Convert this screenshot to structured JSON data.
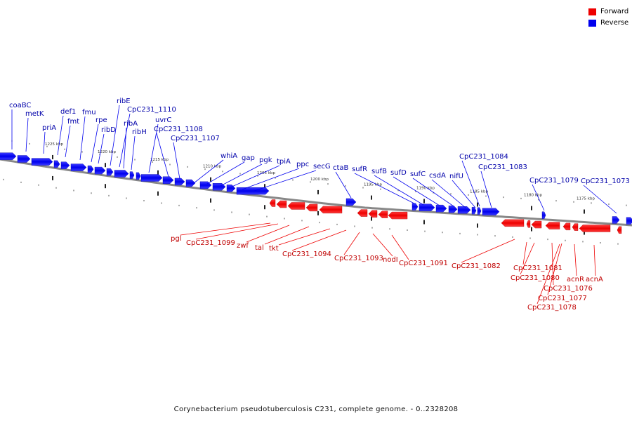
{
  "legend": {
    "items": [
      {
        "label": "Forward",
        "color": "#ee0000"
      },
      {
        "label": "Reverse",
        "color": "#0000ee"
      }
    ]
  },
  "caption": "Corynebacterium pseudotuberculosis C231, complete genome. - 0..2328208",
  "colors": {
    "forward": "#ee0000",
    "forward_label": "#c00000",
    "reverse": "#0000ee",
    "reverse_label": "#0000aa",
    "axis": "#888888"
  },
  "scale_labels": [
    "1225 kbp",
    "1220 kbp",
    "1215 kbp",
    "1210 kbp",
    "1205 kbp",
    "1200 kbp",
    "1195 kbp",
    "1190 kbp",
    "1185 kbp",
    "1180 kbp",
    "1175 kbp"
  ],
  "reverse_genes": [
    "coaBC",
    "metK",
    "priA",
    "def1",
    "fmt",
    "fmu",
    "rpe",
    "ribD",
    "ribE",
    "CpC231_1110",
    "ribA",
    "ribH",
    "uvrC",
    "CpC231_1108",
    "CpC231_1107",
    "whiA",
    "gap",
    "pgk",
    "tpiA",
    "ppc",
    "secG",
    "ctaB",
    "sufR",
    "sufB",
    "sufD",
    "sufC",
    "csdA",
    "nifU",
    "CpC231_1084",
    "CpC231_1083",
    "CpC231_1079",
    "CpC231_1073"
  ],
  "forward_genes": [
    "pgl",
    "CpC231_1099",
    "zwf",
    "tal",
    "tkt",
    "CpC231_1094",
    "CpC231_1093",
    "nodI",
    "CpC231_1091",
    "CpC231_1082",
    "CpC231_1081",
    "CpC231_1080",
    "CpC231_1076",
    "CpC231_1077",
    "CpC231_1078",
    "acnR",
    "acnA"
  ]
}
